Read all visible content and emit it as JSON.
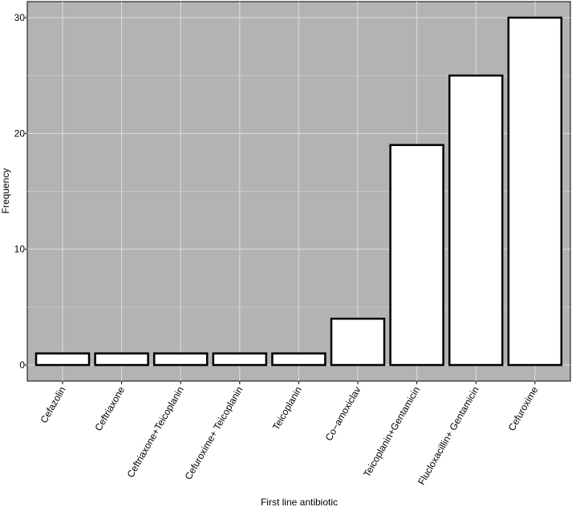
{
  "chart_data": {
    "type": "bar",
    "xlabel": "First line antibiotic",
    "ylabel": "Frequency",
    "categories": [
      "Cefazolin",
      "Ceftriaxone",
      "Ceftriaxone+Teicoplanin",
      "Cefuroxime+ Teicoplanin",
      "Teicoplanin",
      "Co−amoxiclav",
      "Teicoplanin+Gentamicin",
      "Flucloxacillin+ Gentamicin",
      "Cefuroxime"
    ],
    "values": [
      1,
      1,
      1,
      1,
      1,
      4,
      19,
      25,
      30
    ],
    "ylim": [
      0,
      30
    ],
    "yticks": [
      "0",
      "10",
      "20",
      "30"
    ],
    "grid": true,
    "colors": {
      "panel_background": "#b3b3b3",
      "bar_fill": "#ffffff",
      "bar_outline": "#000000",
      "grid_major": "#dcdcdc",
      "grid_minor": "#c6c6c6"
    }
  }
}
